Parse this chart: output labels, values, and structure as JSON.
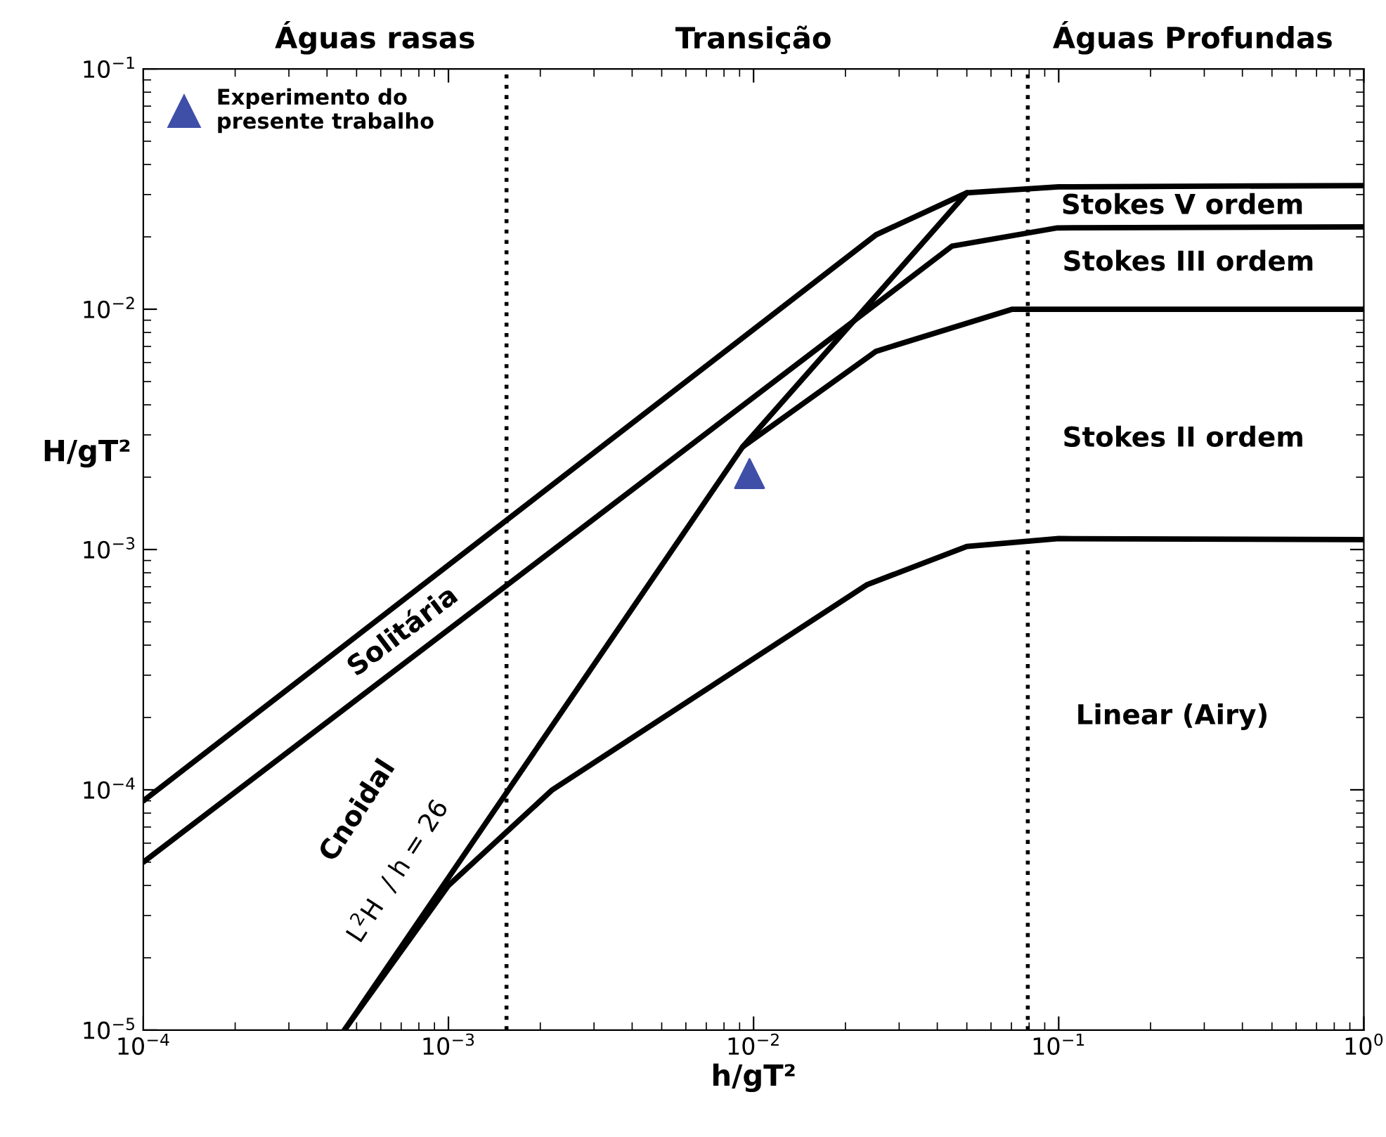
{
  "chart_data": {
    "type": "line",
    "xlabel": "h/gT²",
    "ylabel": "H/gT²",
    "log": "xy",
    "xlim": [
      0.0001,
      1
    ],
    "ylim": [
      1e-05,
      0.1
    ],
    "xticks": [
      {
        "value": 0.0001,
        "label": "10$^{−4}$"
      },
      {
        "value": 0.001,
        "label": "10$^{−3}$"
      },
      {
        "value": 0.01,
        "label": "10$^{−2}$"
      },
      {
        "value": 0.1,
        "label": "10$^{−1}$"
      },
      {
        "value": 1,
        "label": "10$^{0}$"
      }
    ],
    "yticks": [
      {
        "value": 1e-05,
        "label": "10$^{−5}$"
      },
      {
        "value": 0.0001,
        "label": "10$^{−4}$"
      },
      {
        "value": 0.001,
        "label": "10$^{−3}$"
      },
      {
        "value": 0.01,
        "label": "10$^{−2}$"
      },
      {
        "value": 0.1,
        "label": "10$^{−1}$"
      }
    ],
    "grid": false,
    "legend": "top left",
    "line_style": "solid",
    "marker": "none",
    "series": [
      {
        "color": "#000000",
        "x": [
          0.0001,
          0.0252,
          0.05,
          0.1,
          1
        ],
        "values": [
          9e-05,
          0.0204,
          0.0305,
          0.0323,
          0.0327
        ]
      },
      {
        "color": "#000000",
        "x": [
          0.0001,
          0.0447,
          0.099,
          1
        ],
        "values": [
          5e-05,
          0.0183,
          0.0218,
          0.022
        ]
      },
      {
        "color": "#000000",
        "x": [
          0.000456,
          0.0092,
          0.05
        ],
        "values": [
          1e-05,
          0.00267,
          0.0305
        ]
      },
      {
        "color": "#000000",
        "x": [
          0.0092,
          0.0252,
          0.0705,
          1
        ],
        "values": [
          0.00267,
          0.00668,
          0.01,
          0.01
        ]
      },
      {
        "color": "#000000",
        "x": [
          0.000456,
          0.001,
          0.00219,
          0.0236,
          0.05,
          0.1,
          1
        ],
        "values": [
          1e-05,
          4e-05,
          0.0001,
          0.000715,
          0.00103,
          0.00111,
          0.0011
        ]
      },
      {
        "type": "scatter",
        "name": "Experimento do presente trabalho",
        "color": "#3f4fa8",
        "marker": "triangle",
        "x": [
          0.0097
        ],
        "values": [
          0.00207
        ]
      }
    ],
    "ref_lines": [
      {
        "axis": "x",
        "value": 0.00155,
        "color": "#000000",
        "line_style": "dotted"
      },
      {
        "axis": "x",
        "value": 0.0792,
        "color": "#000000",
        "line_style": "dotted"
      }
    ],
    "annotations": [
      "Águas rasas",
      "Transição",
      "Águas Profundas",
      "Solitária",
      "Cnoidal",
      "L$^{2}$H  / h = 26",
      "Stokes V ordem",
      "Stokes III ordem",
      "Stokes II ordem",
      "Linear (Airy)"
    ]
  }
}
